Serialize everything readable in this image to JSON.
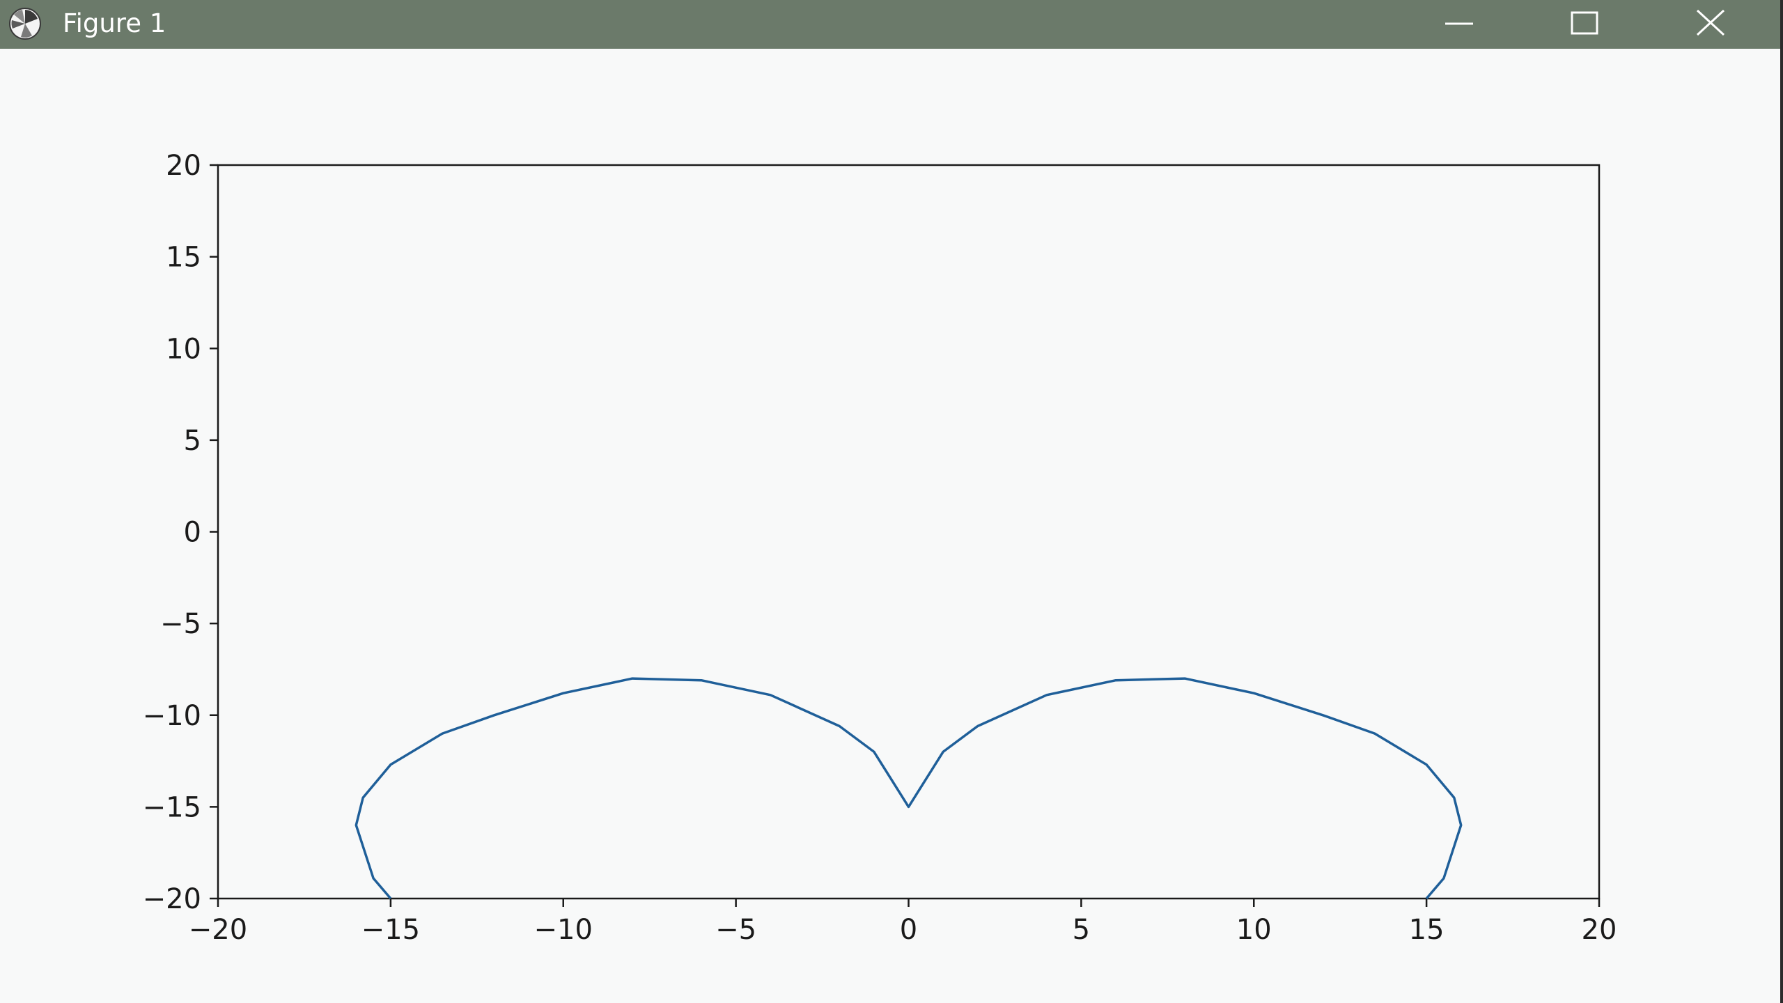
{
  "window": {
    "title": "Figure 1",
    "icon": "matplotlib-icon",
    "buttons": {
      "minimize": "minimize-icon",
      "maximize": "maximize-icon",
      "close": "close-icon"
    }
  },
  "colors": {
    "titlebar": "#6b7a6a",
    "line": "#1f5f99",
    "axes": "#1a1a1a",
    "background": "#f8f9f9"
  },
  "chart_data": {
    "type": "line",
    "title": "",
    "xlabel": "",
    "ylabel": "",
    "xlim": [
      -20,
      20
    ],
    "ylim": [
      -20,
      20
    ],
    "xticks": [
      -20,
      -15,
      -10,
      -5,
      0,
      5,
      10,
      15,
      20
    ],
    "yticks": [
      -20,
      -15,
      -10,
      -5,
      0,
      5,
      10,
      15,
      20
    ],
    "xtick_labels": [
      "−20",
      "−15",
      "−10",
      "−5",
      "0",
      "5",
      "10",
      "15",
      "20"
    ],
    "ytick_labels": [
      "−20",
      "−15",
      "−10",
      "−5",
      "0",
      "5",
      "10",
      "15",
      "20"
    ],
    "grid": false,
    "series": [
      {
        "x": [
          -15,
          -15.5,
          -16,
          -15.8,
          -15,
          -13.5,
          -12,
          -10,
          -8,
          -6,
          -4,
          -2,
          -1,
          0,
          1,
          2,
          4,
          6,
          8,
          10,
          12,
          13.5,
          15,
          15.8,
          16,
          15.5,
          15
        ],
        "y": [
          -20,
          -18.9,
          -16,
          -14.5,
          -12.7,
          -11,
          -10,
          -8.8,
          -8,
          -8.1,
          -8.9,
          -10.6,
          -12,
          -15,
          -12,
          -10.6,
          -8.9,
          -8.1,
          -8,
          -8.8,
          -10,
          -11,
          -12.7,
          -14.5,
          -16,
          -18.9,
          -20
        ]
      }
    ]
  }
}
